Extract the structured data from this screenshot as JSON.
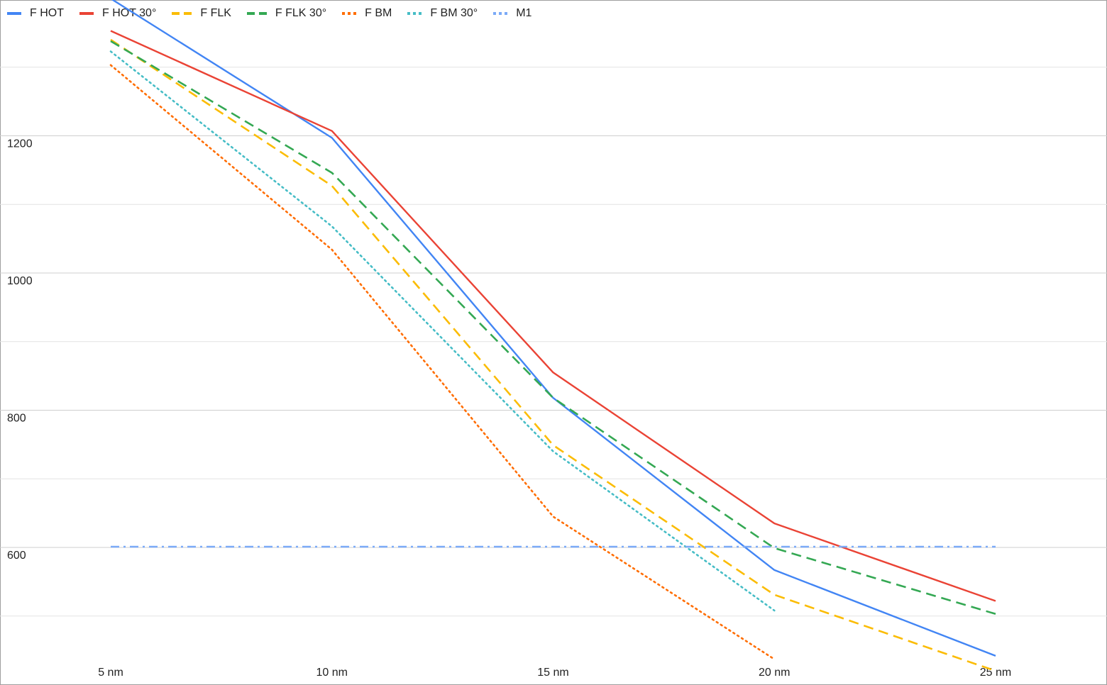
{
  "chart_data": {
    "type": "line",
    "title": "",
    "xlabel": "",
    "ylabel": "",
    "categories": [
      "5 nm",
      "10 nm",
      "15 nm",
      "20 nm",
      "25 nm"
    ],
    "ylim": [
      430,
      1410
    ],
    "yticks": [
      600,
      800,
      1000,
      1200
    ],
    "grid": true,
    "legend": "top-left",
    "series": [
      {
        "name": "F HOT",
        "color": "#4285f4",
        "style": "solid",
        "values": [
          1400,
          1197,
          818,
          567,
          442
        ]
      },
      {
        "name": "F HOT 30°",
        "color": "#ea4335",
        "style": "solid",
        "values": [
          1353,
          1207,
          855,
          635,
          522
        ]
      },
      {
        "name": "F FLK",
        "color": "#fbbc04",
        "style": "dashed",
        "values": [
          1340,
          1127,
          749,
          531,
          420
        ]
      },
      {
        "name": "F FLK 30°",
        "color": "#34a853",
        "style": "dashed",
        "values": [
          1338,
          1146,
          818,
          599,
          503
        ]
      },
      {
        "name": "F BM",
        "color": "#ff6d01",
        "style": "dotted",
        "values": [
          1303,
          1034,
          645,
          437,
          null
        ]
      },
      {
        "name": "F BM 30°",
        "color": "#46bdc6",
        "style": "dotted",
        "values": [
          1323,
          1068,
          740,
          508,
          null
        ]
      },
      {
        "name": "M1",
        "color": "#7baaf7",
        "style": "dashdot",
        "values": [
          601,
          601,
          601,
          601,
          601
        ]
      }
    ]
  }
}
